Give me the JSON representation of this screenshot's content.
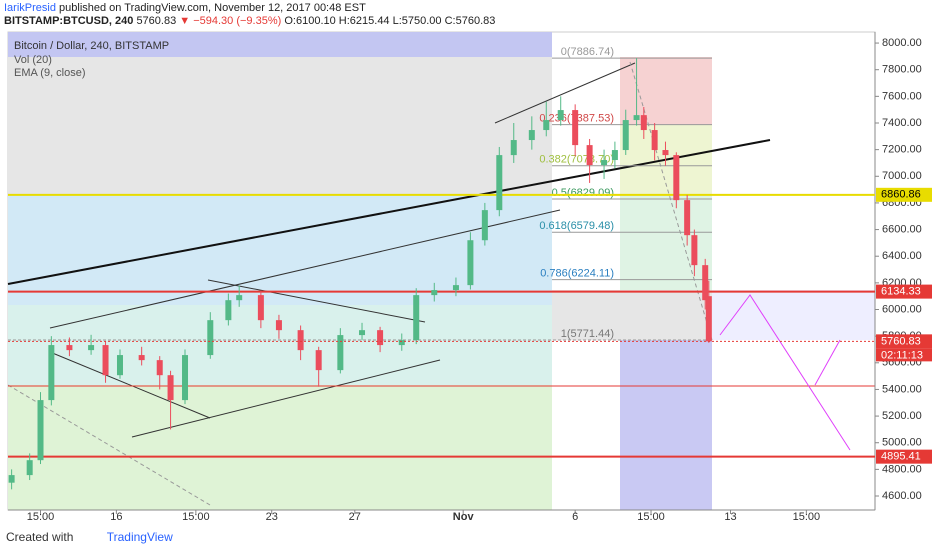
{
  "header": {
    "author": "IarikPresid",
    "published": "published on TradingView.com, November 12, 2017 00:48 EST",
    "symbol": "BITSTAMP:BTCUSD, 240",
    "last": "5760.83",
    "change": "−594.30 (−9.35%)",
    "ohlc": "O:6100.10 H:6215.44 L:5750.00 C:5760.83"
  },
  "chart_data": {
    "type": "candlestick",
    "title": "Bitcoin / Dollar, 240, BITSTAMP",
    "indicators": [
      "Vol (20)",
      "EMA (9, close)"
    ],
    "x": [
      1,
      6,
      9,
      12,
      17,
      23,
      27,
      31,
      37,
      42,
      45,
      49,
      56,
      61,
      64,
      70,
      75,
      81,
      86,
      92,
      98,
      103,
      109,
      113,
      118,
      124,
      128,
      132,
      136,
      140,
      145,
      149,
      153,
      157,
      161,
      165,
      168,
      171,
      174,
      176,
      179,
      182,
      185,
      188,
      190,
      193,
      194
    ],
    "open": [
      4700,
      4757,
      4869,
      5320,
      5733,
      5695,
      5733,
      5507,
      5658,
      5620,
      5507,
      5320,
      5658,
      5920,
      6070,
      6108,
      5920,
      5845,
      5695,
      5545,
      5808,
      5845,
      5733,
      5770,
      6108,
      6146,
      6183,
      6520,
      6746,
      7159,
      7272,
      7347,
      7422,
      7497,
      7234,
      7084,
      7122,
      7197,
      7422,
      7459,
      7347,
      7197,
      7159,
      6821,
      6558,
      6333,
      6100.1
    ],
    "high": [
      4800,
      4920,
      5380,
      5800,
      5790,
      5810,
      5760,
      5700,
      5720,
      5650,
      5540,
      5700,
      5980,
      6120,
      6180,
      6140,
      5960,
      5880,
      5720,
      5860,
      5900,
      5870,
      5820,
      6160,
      6200,
      6240,
      6580,
      6800,
      7220,
      7400,
      7450,
      7560,
      7600,
      7540,
      7280,
      7200,
      7260,
      7500,
      7886.74,
      7520,
      7400,
      7260,
      7180,
      6860,
      6600,
      6380,
      6215.44
    ],
    "low": [
      4650,
      4720,
      4840,
      5280,
      5650,
      5660,
      5450,
      5480,
      5580,
      5400,
      5100,
      5290,
      5630,
      5880,
      6020,
      5860,
      5780,
      5620,
      5420,
      5520,
      5770,
      5680,
      5690,
      5740,
      6060,
      6100,
      6150,
      6480,
      6700,
      7100,
      7200,
      7300,
      7380,
      7150,
      6950,
      6980,
      7060,
      7160,
      7380,
      7280,
      7120,
      7080,
      6760,
      6480,
      6250,
      6000,
      5750
    ],
    "close": [
      4757,
      4869,
      5320,
      5733,
      5695,
      5733,
      5507,
      5658,
      5620,
      5507,
      5320,
      5658,
      5920,
      6070,
      6108,
      5920,
      5845,
      5695,
      5545,
      5808,
      5845,
      5733,
      5770,
      6108,
      6146,
      6183,
      6520,
      6746,
      7159,
      7272,
      7347,
      7422,
      7497,
      7234,
      7084,
      7122,
      7197,
      7422,
      7459,
      7347,
      7197,
      7159,
      6821,
      6558,
      6333,
      6070,
      5760.83
    ],
    "up_color": "#53b987",
    "down_color": "#eb4d5c",
    "xlim": [
      0,
      240
    ],
    "xticks": [
      {
        "value": 9,
        "label": "15:00"
      },
      {
        "value": 30,
        "label": "16"
      },
      {
        "value": 52,
        "label": "15:00"
      },
      {
        "value": 73,
        "label": "23"
      },
      {
        "value": 96,
        "label": "27"
      },
      {
        "value": 126,
        "label": "Nov"
      },
      {
        "value": 157,
        "label": "6"
      },
      {
        "value": 178,
        "label": "15:00"
      },
      {
        "value": 200,
        "label": "13"
      },
      {
        "value": 221,
        "label": "15:00"
      }
    ],
    "ylim": [
      4495,
      8083
    ],
    "yticks": [
      {
        "value": 4600,
        "label": "4600.00"
      },
      {
        "value": 4800,
        "label": "4800.00"
      },
      {
        "value": 5000,
        "label": "5000.00"
      },
      {
        "value": 5200,
        "label": "5200.00"
      },
      {
        "value": 5400,
        "label": "5400.00"
      },
      {
        "value": 5600,
        "label": "5600.00"
      },
      {
        "value": 5800,
        "label": "5800.00"
      },
      {
        "value": 6000,
        "label": "6000.00"
      },
      {
        "value": 6200,
        "label": "6200.00"
      },
      {
        "value": 6400,
        "label": "6400.00"
      },
      {
        "value": 6600,
        "label": "6600.00"
      },
      {
        "value": 6800,
        "label": "6800.00"
      },
      {
        "value": 7000,
        "label": "7000.00"
      },
      {
        "value": 7200,
        "label": "7200.00"
      },
      {
        "value": 7400,
        "label": "7400.00"
      },
      {
        "value": 7600,
        "label": "7600.00"
      },
      {
        "value": 7800,
        "label": "7800.00"
      },
      {
        "value": 8000,
        "label": "8000.00"
      }
    ],
    "fib": [
      {
        "value": 7886.74,
        "label": "0(7886.74)"
      },
      {
        "value": 7387.53,
        "label": "0.236(7387.53)"
      },
      {
        "value": 7078.7,
        "label": "0.382(7078.70)"
      },
      {
        "value": 6829.09,
        "label": "0.5(6829.09)"
      },
      {
        "value": 6579.48,
        "label": "0.618(6579.48)"
      },
      {
        "value": 6224.11,
        "label": "0.786(6224.11)"
      },
      {
        "value": 5771.44,
        "label": "1(5771.44)"
      }
    ],
    "levels": [
      {
        "value": 6860.86,
        "color": "#e8dc00"
      },
      {
        "value": 6134.33,
        "color": "#e53935"
      },
      {
        "value": 4895.41,
        "color": "#e53935"
      }
    ],
    "countdown": "02:11:13"
  },
  "footer": {
    "created": "Created with",
    "brand": "TradingView"
  }
}
